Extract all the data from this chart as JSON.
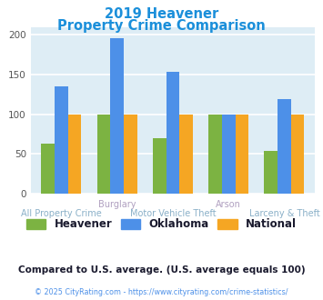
{
  "title_line1": "2019 Heavener",
  "title_line2": "Property Crime Comparison",
  "title_color": "#1b8fda",
  "categories": [
    "All Property Crime",
    "Burglary",
    "Motor Vehicle Theft",
    "Arson",
    "Larceny & Theft"
  ],
  "top_labels": [
    "",
    "Burglary",
    "",
    "Arson",
    ""
  ],
  "bottom_labels": [
    "All Property Crime",
    "",
    "Motor Vehicle Theft",
    "",
    "Larceny & Theft"
  ],
  "heavener": [
    63,
    100,
    70,
    100,
    54
  ],
  "oklahoma": [
    135,
    196,
    153,
    100,
    119
  ],
  "national": [
    100,
    100,
    100,
    100,
    100
  ],
  "heavener_color": "#7CB342",
  "oklahoma_color": "#4D90E8",
  "national_color": "#F5A623",
  "ylim": [
    0,
    210
  ],
  "yticks": [
    0,
    50,
    100,
    150,
    200
  ],
  "background_color": "#deedf5",
  "grid_color": "#ffffff",
  "legend_labels": [
    "Heavener",
    "Oklahoma",
    "National"
  ],
  "footnote": "Compared to U.S. average. (U.S. average equals 100)",
  "footnote_color": "#1a1a2e",
  "copyright": "© 2025 CityRating.com - https://www.cityrating.com/crime-statistics/",
  "copyright_color": "#4D90E8",
  "top_label_color": "#b0a0c0",
  "bottom_label_color": "#8ab0c8"
}
